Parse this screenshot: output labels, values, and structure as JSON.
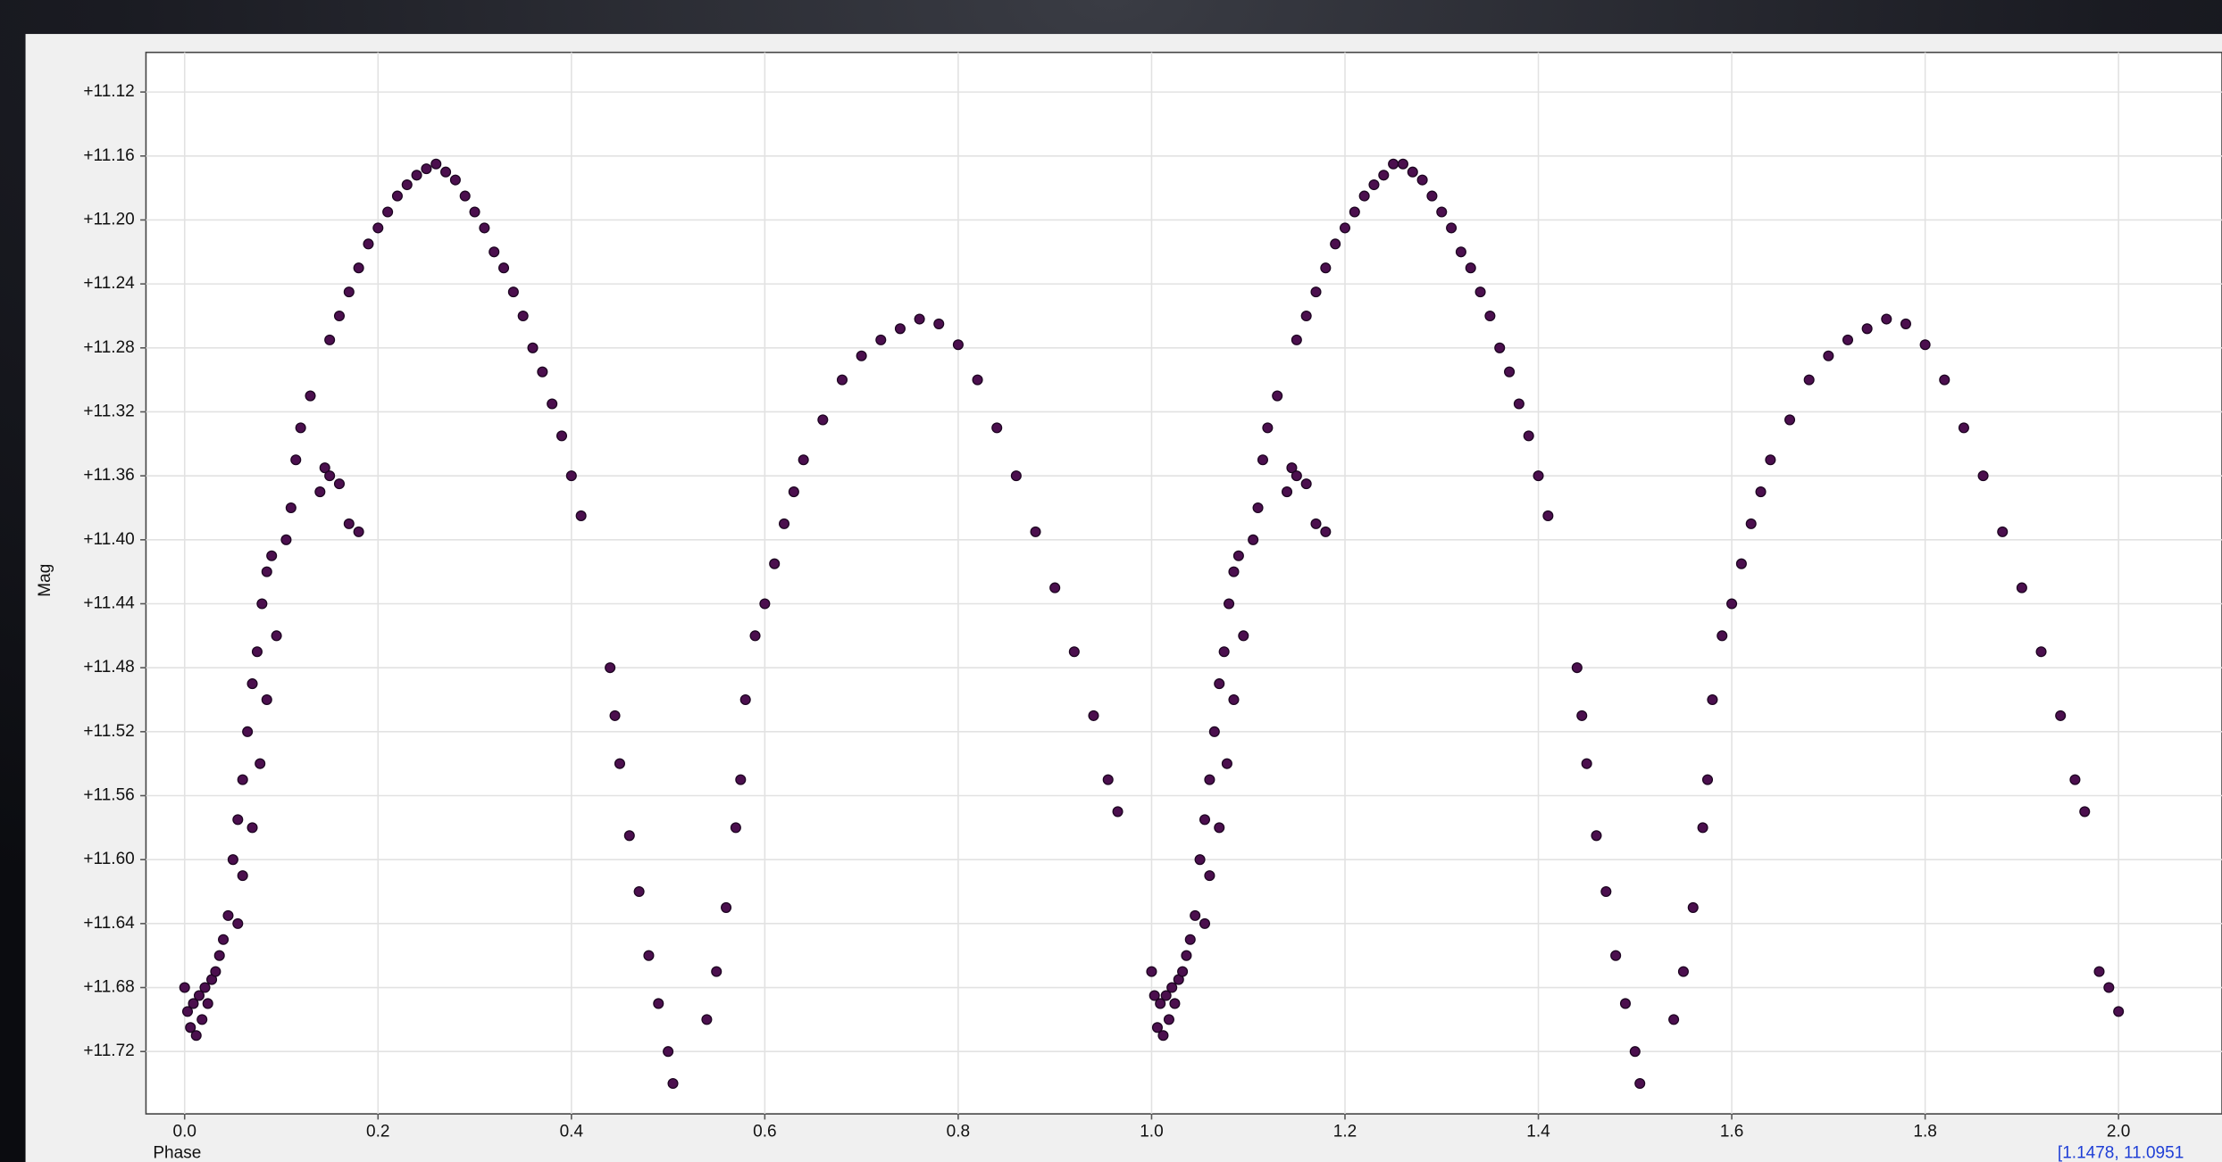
{
  "chart_data": {
    "type": "scatter",
    "x_label": "Phase",
    "y_label": "Mag",
    "cursor_readout": "[1.1478, 11.0951",
    "color": "#4b0f4e",
    "grid": true,
    "y_inverted": true,
    "xlim": [
      -0.04,
      2.107
    ],
    "ylim": [
      11.0952,
      11.759
    ],
    "xticks": [
      {
        "value": 0,
        "label": "0.0"
      },
      0.2,
      0.4,
      0.6,
      0.8,
      {
        "value": 1,
        "label": "1.0"
      },
      1.2,
      1.4,
      1.6,
      1.8,
      {
        "value": 2,
        "label": "2.0"
      }
    ],
    "yticks": [
      {
        "value": 11.12,
        "label": "+11.12"
      },
      {
        "value": 11.16,
        "label": "+11.16"
      },
      {
        "value": 11.2,
        "label": "+11.20"
      },
      {
        "value": 11.24,
        "label": "+11.24"
      },
      {
        "value": 11.28,
        "label": "+11.28"
      },
      {
        "value": 11.32,
        "label": "+11.32"
      },
      {
        "value": 11.36,
        "label": "+11.36"
      },
      {
        "value": 11.4,
        "label": "+11.40"
      },
      {
        "value": 11.44,
        "label": "+11.44"
      },
      {
        "value": 11.48,
        "label": "+11.48"
      },
      {
        "value": 11.52,
        "label": "+11.52"
      },
      {
        "value": 11.56,
        "label": "+11.56"
      },
      {
        "value": 11.6,
        "label": "+11.60"
      },
      {
        "value": 11.64,
        "label": "+11.64"
      },
      {
        "value": 11.68,
        "label": "+11.68"
      },
      {
        "value": 11.72,
        "label": "+11.72"
      }
    ],
    "x": [
      0.0,
      0.003,
      0.006,
      0.009,
      0.012,
      0.015,
      0.018,
      0.021,
      0.024,
      0.028,
      0.032,
      0.036,
      0.04,
      0.045,
      0.05,
      0.055,
      0.06,
      0.065,
      0.07,
      0.075,
      0.08,
      0.085,
      0.09,
      0.055,
      0.06,
      0.07,
      0.078,
      0.085,
      0.095,
      0.105,
      0.11,
      0.115,
      0.12,
      0.13,
      0.14,
      0.145,
      0.15,
      0.16,
      0.17,
      0.18,
      0.15,
      0.16,
      0.17,
      0.18,
      0.19,
      0.2,
      0.21,
      0.22,
      0.23,
      0.24,
      0.25,
      0.26,
      0.27,
      0.28,
      0.29,
      0.3,
      0.31,
      0.32,
      0.33,
      0.34,
      0.35,
      0.36,
      0.37,
      0.38,
      0.39,
      0.4,
      0.41,
      0.44,
      0.445,
      0.45,
      0.46,
      0.47,
      0.48,
      0.49,
      0.5,
      0.505,
      0.54,
      0.55,
      0.56,
      0.57,
      0.575,
      0.58,
      0.59,
      0.6,
      0.61,
      0.62,
      0.63,
      0.64,
      0.66,
      0.68,
      0.7,
      0.72,
      0.74,
      0.76,
      0.78,
      0.8,
      0.82,
      0.84,
      0.86,
      0.88,
      0.9,
      0.92,
      0.94,
      0.955,
      0.965,
      1.0,
      1.003,
      1.006,
      1.009,
      1.012,
      1.015,
      1.018,
      1.021,
      1.024,
      1.028,
      1.032,
      1.036,
      1.04,
      1.045,
      1.05,
      1.055,
      1.06,
      1.065,
      1.07,
      1.075,
      1.08,
      1.085,
      1.09,
      1.055,
      1.06,
      1.07,
      1.078,
      1.085,
      1.095,
      1.105,
      1.11,
      1.115,
      1.12,
      1.13,
      1.14,
      1.145,
      1.15,
      1.16,
      1.17,
      1.18,
      1.15,
      1.16,
      1.17,
      1.18,
      1.19,
      1.2,
      1.21,
      1.22,
      1.23,
      1.24,
      1.25,
      1.26,
      1.27,
      1.28,
      1.29,
      1.3,
      1.31,
      1.32,
      1.33,
      1.34,
      1.35,
      1.36,
      1.37,
      1.38,
      1.39,
      1.4,
      1.41,
      1.44,
      1.445,
      1.45,
      1.46,
      1.47,
      1.48,
      1.49,
      1.5,
      1.505,
      1.54,
      1.55,
      1.56,
      1.57,
      1.575,
      1.58,
      1.59,
      1.6,
      1.61,
      1.62,
      1.63,
      1.64,
      1.66,
      1.68,
      1.7,
      1.72,
      1.74,
      1.76,
      1.78,
      1.8,
      1.82,
      1.84,
      1.86,
      1.88,
      1.9,
      1.92,
      1.94,
      1.955,
      1.965,
      1.98,
      1.99,
      2.0
    ],
    "values": [
      11.68,
      11.695,
      11.705,
      11.69,
      11.71,
      11.685,
      11.7,
      11.68,
      11.69,
      11.675,
      11.67,
      11.66,
      11.65,
      11.635,
      11.6,
      11.575,
      11.55,
      11.52,
      11.49,
      11.47,
      11.44,
      11.42,
      11.41,
      11.64,
      11.61,
      11.58,
      11.54,
      11.5,
      11.46,
      11.4,
      11.38,
      11.35,
      11.33,
      11.31,
      11.37,
      11.355,
      11.36,
      11.365,
      11.39,
      11.395,
      11.275,
      11.26,
      11.245,
      11.23,
      11.215,
      11.205,
      11.195,
      11.185,
      11.178,
      11.172,
      11.168,
      11.165,
      11.17,
      11.175,
      11.185,
      11.195,
      11.205,
      11.22,
      11.23,
      11.245,
      11.26,
      11.28,
      11.295,
      11.315,
      11.335,
      11.36,
      11.385,
      11.48,
      11.51,
      11.54,
      11.585,
      11.62,
      11.66,
      11.69,
      11.72,
      11.74,
      11.7,
      11.67,
      11.63,
      11.58,
      11.55,
      11.5,
      11.46,
      11.44,
      11.415,
      11.39,
      11.37,
      11.35,
      11.325,
      11.3,
      11.285,
      11.275,
      11.268,
      11.262,
      11.265,
      11.278,
      11.3,
      11.33,
      11.36,
      11.395,
      11.43,
      11.47,
      11.51,
      11.55,
      11.57,
      11.67,
      11.685,
      11.705,
      11.69,
      11.71,
      11.685,
      11.7,
      11.68,
      11.69,
      11.675,
      11.67,
      11.66,
      11.65,
      11.635,
      11.6,
      11.575,
      11.55,
      11.52,
      11.49,
      11.47,
      11.44,
      11.42,
      11.41,
      11.64,
      11.61,
      11.58,
      11.54,
      11.5,
      11.46,
      11.4,
      11.38,
      11.35,
      11.33,
      11.31,
      11.37,
      11.355,
      11.36,
      11.365,
      11.39,
      11.395,
      11.275,
      11.26,
      11.245,
      11.23,
      11.215,
      11.205,
      11.195,
      11.185,
      11.178,
      11.172,
      11.165,
      11.165,
      11.17,
      11.175,
      11.185,
      11.195,
      11.205,
      11.22,
      11.23,
      11.245,
      11.26,
      11.28,
      11.295,
      11.315,
      11.335,
      11.36,
      11.385,
      11.48,
      11.51,
      11.54,
      11.585,
      11.62,
      11.66,
      11.69,
      11.72,
      11.74,
      11.7,
      11.67,
      11.63,
      11.58,
      11.55,
      11.5,
      11.46,
      11.44,
      11.415,
      11.39,
      11.37,
      11.35,
      11.325,
      11.3,
      11.285,
      11.275,
      11.268,
      11.262,
      11.265,
      11.278,
      11.3,
      11.33,
      11.36,
      11.395,
      11.43,
      11.47,
      11.51,
      11.55,
      11.57,
      11.67,
      11.68,
      11.695
    ]
  }
}
